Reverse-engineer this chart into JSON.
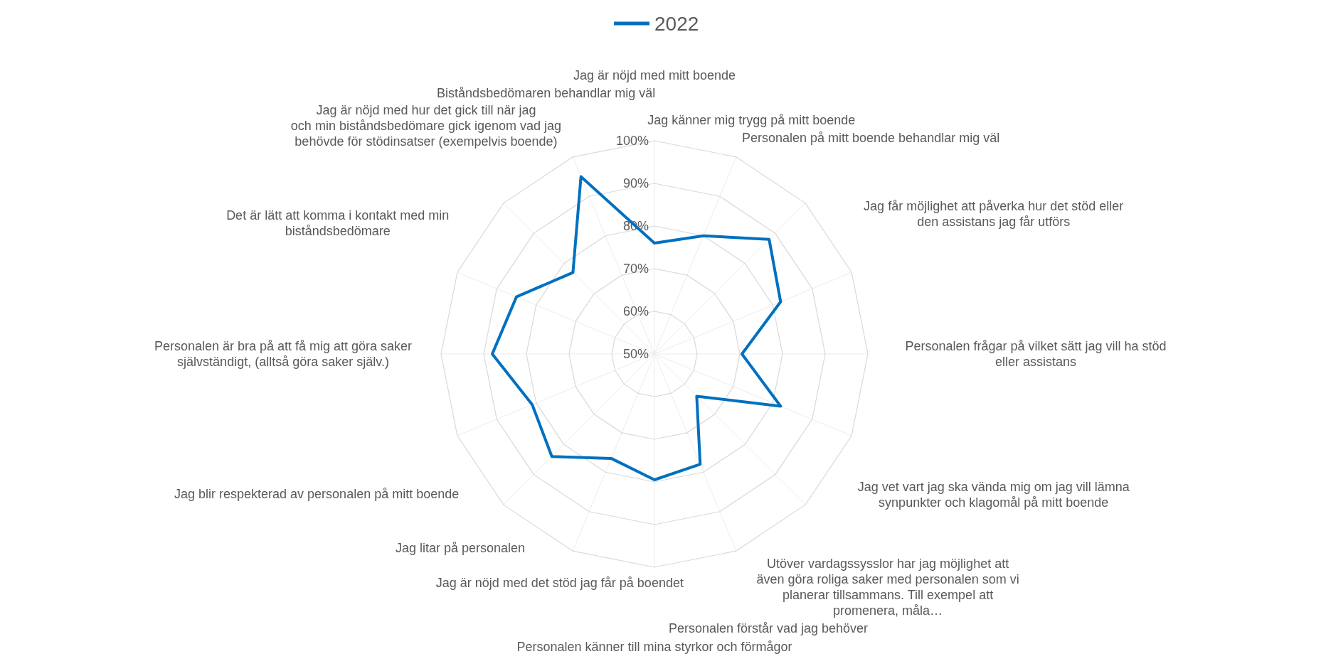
{
  "chart_data": {
    "type": "radar",
    "categories": [
      "Jag är nöjd med mitt boende",
      "Jag känner mig trygg på mitt boende",
      "Personalen på mitt boende behandlar mig väl",
      "Jag får möjlighet att påverka hur det stöd eller den assistans jag får utförs",
      "Personalen frågar på vilket sätt jag vill ha stöd eller assistans",
      "Jag vet vart jag ska vända mig om jag vill lämna synpunkter och klagomål på mitt boende",
      "Utöver vardagssysslor har jag möjlighet att även göra roliga saker med personalen som vi planerar tillsammans. Till exempel att promenera, måla…",
      "Personalen förstår vad jag behöver",
      "Personalen känner till mina styrkor och förmågor",
      "Jag är nöjd med det stöd jag får på boendet",
      "Jag litar på personalen",
      "Jag blir respekterad av personalen på mitt boende",
      "Personalen är bra på att få mig att göra saker självständigt, (alltså göra saker själv.)",
      "Det är lätt att komma i kontakt med min biståndsbedömare",
      "Jag är nöjd med hur det gick till när jag och min biståndsbedömare gick igenom vad jag behövde för stödinsatser (exempelvis boende)",
      "Biståndsbedömaren behandlar mig väl"
    ],
    "series": [
      {
        "name": "2022",
        "color": "#0070c0",
        "values": [
          76,
          80,
          88,
          82,
          70.5,
          82,
          64,
          78,
          79.5,
          76.5,
          84,
          81,
          88,
          85,
          77,
          95
        ]
      }
    ],
    "ylim": [
      50,
      100
    ],
    "yticks": [
      {
        "value": 50,
        "label": "50%"
      },
      {
        "value": 60,
        "label": "60%"
      },
      {
        "value": 70,
        "label": "70%"
      },
      {
        "value": 80,
        "label": "80%"
      },
      {
        "value": 90,
        "label": "90%"
      },
      {
        "value": 100,
        "label": "100%"
      }
    ],
    "grid": true,
    "legend": "top",
    "line_style": "solid",
    "marker": "none"
  }
}
